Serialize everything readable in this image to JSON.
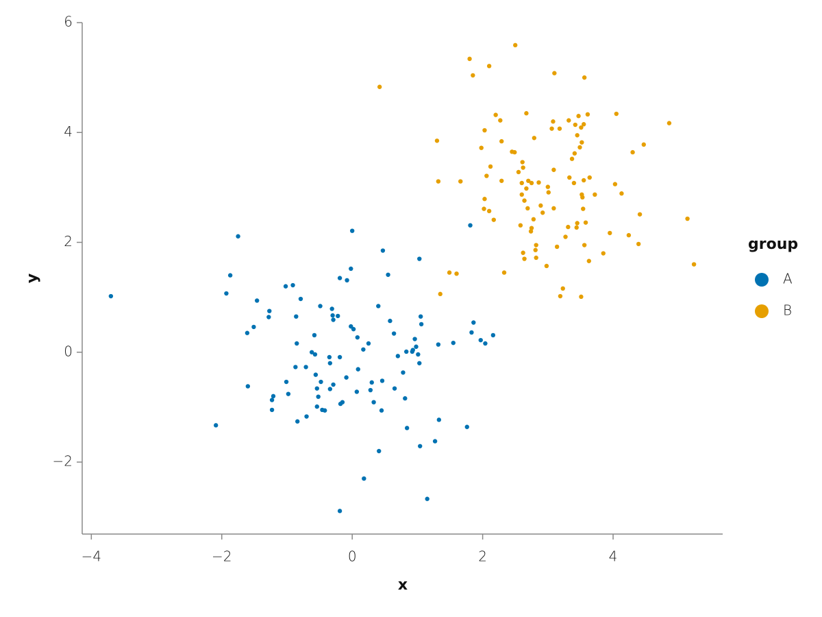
{
  "chart_data": {
    "type": "scatter",
    "x_label": "x",
    "y_label": "y",
    "legend_title": "group",
    "xlim": [
      -4.14,
      5.68
    ],
    "ylim": [
      -3.31,
      6.0
    ],
    "xticks": [
      {
        "value": -4,
        "label": "−4"
      },
      {
        "value": -2,
        "label": "−2"
      },
      0,
      2,
      4
    ],
    "yticks": [
      {
        "value": -2,
        "label": "−2"
      },
      0,
      2,
      4,
      6
    ],
    "legend_position": "right",
    "series": [
      {
        "name": "A",
        "color": "#0072b2",
        "x": [
          -3.7,
          -1.75,
          -1.87,
          -1.93,
          -1.46,
          -1.27,
          -1.28,
          -1.51,
          -1.61,
          -2.09,
          -1.6,
          -1.21,
          -1.23,
          -1.23,
          -1.02,
          -0.91,
          -0.79,
          -0.86,
          -0.85,
          -0.87,
          -0.71,
          -0.98,
          -1.01,
          -0.7,
          -0.84,
          -0.58,
          -0.62,
          -0.57,
          -0.56,
          -0.54,
          -0.52,
          -0.54,
          -0.46,
          -0.42,
          -0.48,
          -0.49,
          -0.31,
          -0.3,
          -0.29,
          -0.35,
          -0.34,
          -0.34,
          -0.22,
          -0.19,
          -0.08,
          -0.19,
          0.0,
          -0.02,
          -0.02,
          0.02,
          0.08,
          0.09,
          0.07,
          -0.09,
          -0.15,
          -0.18,
          -0.29,
          0.17,
          0.25,
          0.3,
          0.28,
          0.33,
          0.4,
          0.47,
          0.55,
          0.58,
          0.64,
          0.7,
          0.65,
          0.45,
          0.46,
          0.41,
          0.18,
          0.78,
          0.81,
          0.83,
          0.92,
          0.96,
          0.98,
          1.01,
          0.93,
          1.03,
          1.05,
          1.06,
          1.03,
          0.84,
          1.04,
          1.15,
          1.27,
          1.32,
          1.33,
          1.55,
          1.76,
          1.81,
          1.83,
          1.86,
          1.97,
          2.04,
          2.16,
          -0.19
        ],
        "y": [
          1.02,
          2.11,
          1.4,
          1.07,
          0.94,
          0.75,
          0.64,
          0.46,
          0.35,
          -1.33,
          -0.62,
          -0.8,
          -0.87,
          -1.05,
          1.2,
          1.22,
          0.97,
          0.65,
          0.16,
          -0.27,
          -0.27,
          -0.76,
          -0.54,
          -1.17,
          -1.26,
          0.31,
          0.0,
          -0.04,
          -0.41,
          -0.66,
          -0.81,
          -0.99,
          -1.05,
          -1.06,
          -0.54,
          0.84,
          0.79,
          0.67,
          0.59,
          -0.09,
          -0.2,
          -0.67,
          0.66,
          -0.09,
          1.31,
          1.35,
          2.21,
          1.52,
          0.47,
          0.42,
          0.27,
          -0.31,
          -0.72,
          -0.46,
          -0.91,
          -0.94,
          -0.59,
          0.05,
          0.16,
          -0.55,
          -0.69,
          -0.91,
          0.84,
          1.85,
          1.41,
          0.57,
          0.34,
          -0.07,
          -0.66,
          -1.06,
          -0.52,
          -1.8,
          -2.3,
          -0.37,
          -0.84,
          0.01,
          0.01,
          0.24,
          0.1,
          -0.04,
          0.04,
          1.7,
          0.65,
          0.51,
          -0.2,
          -1.38,
          -1.71,
          -2.67,
          -1.62,
          0.14,
          -1.23,
          0.17,
          -1.36,
          2.31,
          0.36,
          0.54,
          0.22,
          0.16,
          0.31,
          -2.89
        ]
      },
      {
        "name": "B",
        "color": "#e69f00",
        "x": [
          0.42,
          1.8,
          1.85,
          2.1,
          2.5,
          3.1,
          3.56,
          1.3,
          1.32,
          1.66,
          2.03,
          1.98,
          2.06,
          2.03,
          2.02,
          2.1,
          2.17,
          2.12,
          2.2,
          2.27,
          2.29,
          2.29,
          2.45,
          2.49,
          2.55,
          2.61,
          2.62,
          2.6,
          2.6,
          2.64,
          2.67,
          2.69,
          2.67,
          2.7,
          2.75,
          2.79,
          2.86,
          2.89,
          2.92,
          2.78,
          2.75,
          2.74,
          2.82,
          2.81,
          2.82,
          2.58,
          2.62,
          2.64,
          2.33,
          2.98,
          3.0,
          3.01,
          3.09,
          3.09,
          3.06,
          3.08,
          3.18,
          3.14,
          3.23,
          3.19,
          3.27,
          3.31,
          3.32,
          3.33,
          3.37,
          3.4,
          3.41,
          3.42,
          3.45,
          3.44,
          3.45,
          3.49,
          3.52,
          3.51,
          3.55,
          3.61,
          3.47,
          3.52,
          3.53,
          3.54,
          3.55,
          3.58,
          3.56,
          3.51,
          3.63,
          3.64,
          3.72,
          3.85,
          3.95,
          4.03,
          4.05,
          4.13,
          4.24,
          4.3,
          4.39,
          4.41,
          4.47,
          4.86,
          5.14,
          5.24,
          1.49,
          1.6,
          1.35
        ],
        "y": [
          4.83,
          5.34,
          5.04,
          5.21,
          5.59,
          5.08,
          5.0,
          3.85,
          3.11,
          3.11,
          4.04,
          3.72,
          3.21,
          2.79,
          2.61,
          2.57,
          2.41,
          3.38,
          4.32,
          4.22,
          3.84,
          3.12,
          3.65,
          3.64,
          3.28,
          3.46,
          3.36,
          3.08,
          2.87,
          2.76,
          2.98,
          2.62,
          4.35,
          3.12,
          3.08,
          3.9,
          3.09,
          2.67,
          2.54,
          2.42,
          2.26,
          2.2,
          1.95,
          1.86,
          1.72,
          2.31,
          1.81,
          1.7,
          1.45,
          1.57,
          3.01,
          2.91,
          2.62,
          3.32,
          4.07,
          4.2,
          4.07,
          1.92,
          1.16,
          1.02,
          2.1,
          2.28,
          4.22,
          3.18,
          3.52,
          3.08,
          3.62,
          4.14,
          3.95,
          2.27,
          2.35,
          3.73,
          3.82,
          4.09,
          4.15,
          4.33,
          4.3,
          2.87,
          2.82,
          2.61,
          3.13,
          2.36,
          1.95,
          1.01,
          1.66,
          3.18,
          2.87,
          1.8,
          2.17,
          3.06,
          4.34,
          2.89,
          2.13,
          3.64,
          1.97,
          2.51,
          3.78,
          4.17,
          2.43,
          1.6,
          1.45,
          1.43,
          1.06
        ]
      }
    ]
  }
}
